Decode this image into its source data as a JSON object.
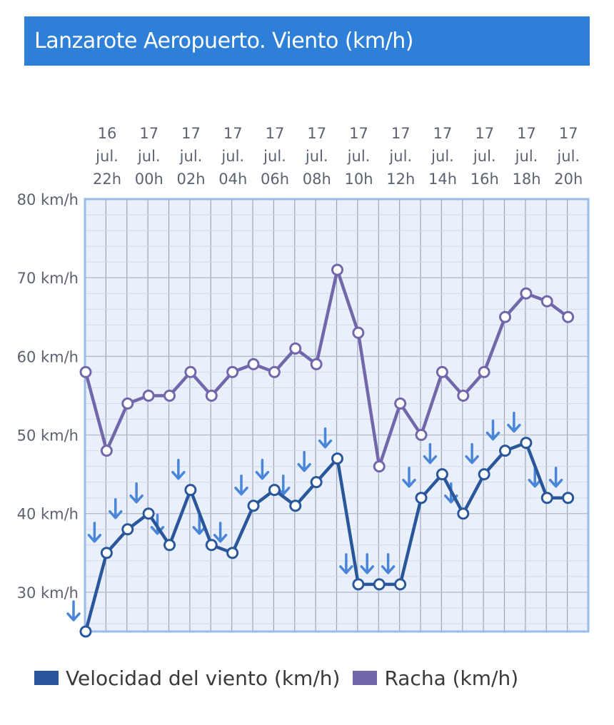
{
  "header": {
    "title": "Lanzarote Aeropuerto. Viento (km/h)"
  },
  "colors": {
    "header_bg": "#2d7fd7",
    "wind": "#2a579c",
    "gust": "#7267ab",
    "arrow": "#4a86d8",
    "plot_bg": "#e9f0fb",
    "frame": "#9bbce6"
  },
  "legend": [
    {
      "label": "Velocidad del viento (km/h)",
      "color": "#2a579c"
    },
    {
      "label": "Racha (km/h)",
      "color": "#7267ab"
    }
  ],
  "chart_data": {
    "type": "line",
    "title": "Lanzarote Aeropuerto. Viento (km/h)",
    "x_ticks": [
      [
        "16",
        "jul.",
        "22h"
      ],
      [
        "17",
        "jul.",
        "00h"
      ],
      [
        "17",
        "jul.",
        "02h"
      ],
      [
        "17",
        "jul.",
        "04h"
      ],
      [
        "17",
        "jul.",
        "06h"
      ],
      [
        "17",
        "jul.",
        "08h"
      ],
      [
        "17",
        "jul.",
        "10h"
      ],
      [
        "17",
        "jul.",
        "12h"
      ],
      [
        "17",
        "jul.",
        "14h"
      ],
      [
        "17",
        "jul.",
        "16h"
      ],
      [
        "17",
        "jul.",
        "18h"
      ],
      [
        "17",
        "jul.",
        "20h"
      ]
    ],
    "y_ticks": [
      "80 km/h",
      "70 km/h",
      "60 km/h",
      "50 km/h",
      "40 km/h",
      "30 km/h"
    ],
    "ylim": [
      25,
      80
    ],
    "grid": true,
    "legend_position": "bottom",
    "x": [
      "16 jul. 22h",
      "16 jul. 23h",
      "17 jul. 00h",
      "17 jul. 01h",
      "17 jul. 02h",
      "17 jul. 03h",
      "17 jul. 04h",
      "17 jul. 05h",
      "17 jul. 06h",
      "17 jul. 07h",
      "17 jul. 08h",
      "17 jul. 09h",
      "17 jul. 10h",
      "17 jul. 11h",
      "17 jul. 12h",
      "17 jul. 13h",
      "17 jul. 14h",
      "17 jul. 15h",
      "17 jul. 16h",
      "17 jul. 17h",
      "17 jul. 18h",
      "17 jul. 19h",
      "17 jul. 20h",
      "17 jul. 21h"
    ],
    "series": [
      {
        "name": "Velocidad del viento (km/h)",
        "values": [
          25,
          35,
          38,
          40,
          36,
          43,
          36,
          35,
          41,
          43,
          41,
          44,
          47,
          31,
          31,
          31,
          42,
          45,
          40,
          45,
          48,
          49,
          42,
          42
        ]
      },
      {
        "name": "Racha (km/h)",
        "values": [
          58,
          48,
          54,
          55,
          55,
          58,
          55,
          58,
          59,
          58,
          61,
          59,
          71,
          63,
          46,
          54,
          50,
          58,
          55,
          58,
          65,
          68,
          67,
          65
        ]
      }
    ]
  }
}
